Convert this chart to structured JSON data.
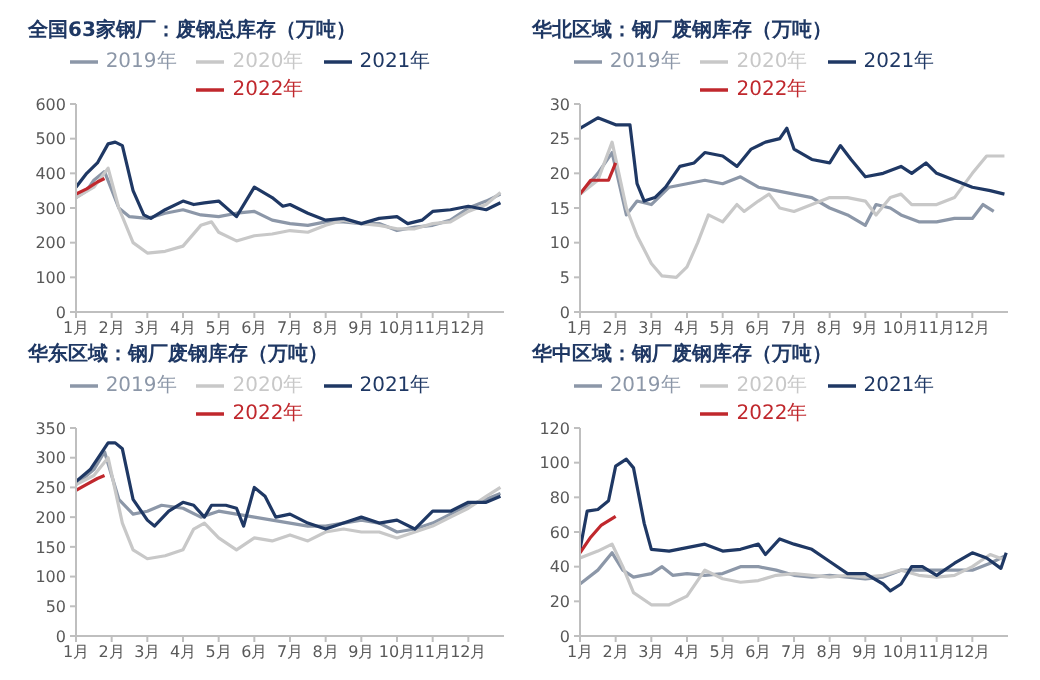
{
  "chart_data": [
    {
      "type": "line",
      "title": "全国63家钢厂：废钢总库存（万吨）",
      "xlim": [
        1,
        13
      ],
      "xticks": [
        {
          "value": 1,
          "label": "1月"
        },
        {
          "value": 2,
          "label": "2月"
        },
        {
          "value": 3,
          "label": "3月"
        },
        {
          "value": 4,
          "label": "4月"
        },
        {
          "value": 5,
          "label": "5月"
        },
        {
          "value": 6,
          "label": "6月"
        },
        {
          "value": 7,
          "label": "7月"
        },
        {
          "value": 8,
          "label": "8月"
        },
        {
          "value": 9,
          "label": "9月"
        },
        {
          "value": 10,
          "label": "10月"
        },
        {
          "value": 11,
          "label": "11月"
        },
        {
          "value": 12,
          "label": "12月"
        }
      ],
      "ylim": [
        0,
        600
      ],
      "yticks": [
        0,
        100,
        200,
        300,
        400,
        500,
        600
      ],
      "grid": false,
      "legend": "top",
      "marker": "none",
      "line_style": "solid",
      "series": [
        {
          "name": "2019年",
          "color": "#8c97a8",
          "x": [
            1,
            1.3,
            1.5,
            1.8,
            2.2,
            2.5,
            3,
            3.5,
            4,
            4.5,
            5,
            5.5,
            6,
            6.5,
            7,
            7.5,
            8,
            8.5,
            9,
            9.5,
            10,
            10.5,
            11,
            11.5,
            12,
            12.5,
            12.9
          ],
          "values": [
            330,
            350,
            380,
            405,
            300,
            275,
            270,
            285,
            295,
            280,
            275,
            285,
            290,
            265,
            255,
            250,
            260,
            260,
            255,
            255,
            235,
            245,
            250,
            265,
            300,
            320,
            340
          ]
        },
        {
          "name": "2020年",
          "color": "#c8c8c8",
          "x": [
            1,
            1.5,
            1.9,
            2.2,
            2.6,
            3,
            3.5,
            4,
            4.5,
            4.8,
            5,
            5.5,
            6,
            6.5,
            7,
            7.5,
            8,
            8.5,
            9,
            9.5,
            10,
            10.5,
            11,
            11.5,
            12,
            12.5,
            12.9
          ],
          "values": [
            330,
            360,
            415,
            300,
            200,
            170,
            175,
            190,
            250,
            260,
            230,
            205,
            220,
            225,
            235,
            230,
            250,
            265,
            255,
            250,
            240,
            240,
            255,
            260,
            290,
            310,
            345
          ]
        },
        {
          "name": "2021年",
          "color": "#1f3864",
          "x": [
            1,
            1.3,
            1.6,
            1.9,
            2.1,
            2.3,
            2.6,
            2.9,
            3.1,
            3.5,
            4,
            4.3,
            4.6,
            5,
            5.5,
            6,
            6.5,
            6.8,
            7,
            7.5,
            8,
            8.5,
            9,
            9.5,
            10,
            10.3,
            10.7,
            11,
            11.5,
            12,
            12.5,
            12.9
          ],
          "values": [
            360,
            400,
            430,
            485,
            490,
            480,
            350,
            280,
            270,
            295,
            320,
            310,
            315,
            320,
            275,
            360,
            330,
            305,
            310,
            285,
            265,
            270,
            255,
            270,
            275,
            255,
            265,
            290,
            295,
            305,
            295,
            315
          ]
        },
        {
          "name": "2022年",
          "color": "#c0282d",
          "x": [
            1,
            1.3,
            1.6,
            1.8
          ],
          "values": [
            340,
            355,
            375,
            385
          ]
        }
      ]
    },
    {
      "type": "line",
      "title": "华北区域：钢厂废钢库存（万吨）",
      "xlim": [
        1,
        13
      ],
      "xticks": [
        {
          "value": 1,
          "label": "1月"
        },
        {
          "value": 2,
          "label": "2月"
        },
        {
          "value": 3,
          "label": "3月"
        },
        {
          "value": 4,
          "label": "4月"
        },
        {
          "value": 5,
          "label": "5月"
        },
        {
          "value": 6,
          "label": "6月"
        },
        {
          "value": 7,
          "label": "7月"
        },
        {
          "value": 8,
          "label": "8月"
        },
        {
          "value": 9,
          "label": "9月"
        },
        {
          "value": 10,
          "label": "10月"
        },
        {
          "value": 11,
          "label": "11月"
        },
        {
          "value": 12,
          "label": "12月"
        }
      ],
      "ylim": [
        0,
        30
      ],
      "yticks": [
        0,
        5,
        10,
        15,
        20,
        25,
        30
      ],
      "grid": false,
      "legend": "top",
      "marker": "none",
      "line_style": "solid",
      "series": [
        {
          "name": "2019年",
          "color": "#8c97a8",
          "x": [
            1,
            1.5,
            1.9,
            2.3,
            2.6,
            3,
            3.5,
            4,
            4.5,
            5,
            5.5,
            6,
            6.5,
            7,
            7.5,
            8,
            8.5,
            9,
            9.3,
            9.7,
            10,
            10.5,
            11,
            11.5,
            12,
            12.3,
            12.6
          ],
          "values": [
            17,
            20,
            23,
            14,
            16,
            15.5,
            18,
            18.5,
            19,
            18.5,
            19.5,
            18,
            17.5,
            17,
            16.5,
            15,
            14,
            12.5,
            15.5,
            15,
            14,
            13,
            13,
            13.5,
            13.5,
            15.5,
            14.5
          ]
        },
        {
          "name": "2020年",
          "color": "#c8c8c8",
          "x": [
            1,
            1.5,
            1.9,
            2.3,
            2.6,
            3,
            3.3,
            3.7,
            4,
            4.3,
            4.6,
            5,
            5.4,
            5.6,
            6,
            6.3,
            6.6,
            7,
            7.5,
            8,
            8.5,
            9,
            9.3,
            9.7,
            10,
            10.3,
            10.7,
            11,
            11.5,
            12,
            12.4,
            12.9
          ],
          "values": [
            17,
            19,
            24.5,
            15,
            11,
            7,
            5.2,
            5,
            6.5,
            10,
            14,
            13,
            15.5,
            14.5,
            16,
            17,
            15,
            14.5,
            15.5,
            16.5,
            16.5,
            16,
            14,
            16.5,
            17,
            15.5,
            15.5,
            15.5,
            16.5,
            20,
            22.5,
            22.5
          ]
        },
        {
          "name": "2021年",
          "color": "#1f3864",
          "x": [
            1,
            1.5,
            2,
            2.4,
            2.6,
            2.8,
            3.1,
            3.4,
            3.8,
            4.2,
            4.5,
            5,
            5.4,
            5.8,
            6.2,
            6.6,
            6.8,
            7,
            7.5,
            8,
            8.3,
            8.6,
            9,
            9.5,
            10,
            10.3,
            10.7,
            11,
            11.5,
            12,
            12.5,
            12.9
          ],
          "values": [
            26.5,
            28,
            27,
            27,
            18.5,
            16,
            16.5,
            18,
            21,
            21.5,
            23,
            22.5,
            21,
            23.5,
            24.5,
            25,
            26.5,
            23.5,
            22,
            21.5,
            24,
            22,
            19.5,
            20,
            21,
            20,
            21.5,
            20,
            19,
            18,
            17.5,
            17
          ]
        },
        {
          "name": "2022年",
          "color": "#c0282d",
          "x": [
            1,
            1.3,
            1.6,
            1.8,
            2
          ],
          "values": [
            17,
            19,
            19,
            19,
            21.5
          ]
        }
      ]
    },
    {
      "type": "line",
      "title": "华东区域：钢厂废钢库存（万吨）",
      "xlim": [
        1,
        13
      ],
      "xticks": [
        {
          "value": 1,
          "label": "1月"
        },
        {
          "value": 2,
          "label": "2月"
        },
        {
          "value": 3,
          "label": "3月"
        },
        {
          "value": 4,
          "label": "4月"
        },
        {
          "value": 5,
          "label": "5月"
        },
        {
          "value": 6,
          "label": "6月"
        },
        {
          "value": 7,
          "label": "7月"
        },
        {
          "value": 8,
          "label": "8月"
        },
        {
          "value": 9,
          "label": "9月"
        },
        {
          "value": 10,
          "label": "10月"
        },
        {
          "value": 11,
          "label": "11月"
        },
        {
          "value": 12,
          "label": "12月"
        }
      ],
      "ylim": [
        0,
        350
      ],
      "yticks": [
        0,
        50,
        100,
        150,
        200,
        250,
        300,
        350
      ],
      "grid": false,
      "legend": "top",
      "marker": "none",
      "line_style": "solid",
      "series": [
        {
          "name": "2019年",
          "color": "#8c97a8",
          "x": [
            1,
            1.5,
            1.8,
            2.2,
            2.6,
            3,
            3.4,
            4,
            4.5,
            5,
            5.5,
            6,
            6.5,
            7,
            7.5,
            8,
            8.5,
            9,
            9.5,
            10,
            10.5,
            11,
            11.5,
            12,
            12.5,
            12.9
          ],
          "values": [
            255,
            280,
            310,
            230,
            205,
            210,
            220,
            215,
            200,
            210,
            205,
            200,
            195,
            190,
            185,
            185,
            190,
            195,
            190,
            175,
            180,
            190,
            205,
            220,
            230,
            240
          ]
        },
        {
          "name": "2020年",
          "color": "#c8c8c8",
          "x": [
            1,
            1.5,
            1.9,
            2.3,
            2.6,
            3,
            3.5,
            4,
            4.3,
            4.6,
            5,
            5.5,
            6,
            6.5,
            7,
            7.5,
            8,
            8.5,
            9,
            9.5,
            10,
            10.5,
            11,
            11.5,
            12,
            12.5,
            12.9
          ],
          "values": [
            255,
            270,
            300,
            190,
            145,
            130,
            135,
            145,
            180,
            190,
            165,
            145,
            165,
            160,
            170,
            160,
            175,
            180,
            175,
            175,
            165,
            175,
            185,
            200,
            215,
            235,
            250
          ]
        },
        {
          "name": "2021年",
          "color": "#1f3864",
          "x": [
            1,
            1.4,
            1.9,
            2.1,
            2.3,
            2.6,
            3,
            3.2,
            3.6,
            4,
            4.3,
            4.6,
            4.8,
            5.2,
            5.5,
            5.7,
            6,
            6.3,
            6.6,
            7,
            7.5,
            8,
            8.5,
            9,
            9.5,
            10,
            10.5,
            11,
            11.5,
            12,
            12.5,
            12.9
          ],
          "values": [
            260,
            280,
            325,
            325,
            315,
            230,
            195,
            185,
            210,
            225,
            220,
            200,
            220,
            220,
            215,
            185,
            250,
            235,
            200,
            205,
            190,
            180,
            190,
            200,
            190,
            195,
            180,
            210,
            210,
            225,
            225,
            235
          ]
        },
        {
          "name": "2022年",
          "color": "#c0282d",
          "x": [
            1,
            1.3,
            1.6,
            1.8
          ],
          "values": [
            245,
            255,
            265,
            270
          ]
        }
      ]
    },
    {
      "type": "line",
      "title": "华中区域：钢厂废钢库存（万吨）",
      "xlim": [
        1,
        13
      ],
      "xticks": [
        {
          "value": 1,
          "label": "1月"
        },
        {
          "value": 2,
          "label": "2月"
        },
        {
          "value": 3,
          "label": "3月"
        },
        {
          "value": 4,
          "label": "4月"
        },
        {
          "value": 5,
          "label": "5月"
        },
        {
          "value": 6,
          "label": "6月"
        },
        {
          "value": 7,
          "label": "7月"
        },
        {
          "value": 8,
          "label": "8月"
        },
        {
          "value": 9,
          "label": "9月"
        },
        {
          "value": 10,
          "label": "10月"
        },
        {
          "value": 11,
          "label": "11月"
        },
        {
          "value": 12,
          "label": "12月"
        }
      ],
      "ylim": [
        0,
        120
      ],
      "yticks": [
        0,
        20,
        40,
        60,
        80,
        100,
        120
      ],
      "grid": false,
      "legend": "top",
      "marker": "none",
      "line_style": "solid",
      "series": [
        {
          "name": "2019年",
          "color": "#8c97a8",
          "x": [
            1,
            1.5,
            1.9,
            2.2,
            2.5,
            3,
            3.3,
            3.6,
            4,
            4.5,
            5,
            5.5,
            6,
            6.5,
            7,
            7.5,
            8,
            8.5,
            9,
            9.5,
            10,
            10.5,
            11,
            11.5,
            12,
            12.5,
            12.9
          ],
          "values": [
            30,
            38,
            48,
            38,
            34,
            36,
            40,
            35,
            36,
            35,
            36,
            40,
            40,
            38,
            35,
            34,
            35,
            34,
            33,
            34,
            38,
            38,
            38,
            38,
            38,
            42,
            46
          ]
        },
        {
          "name": "2020年",
          "color": "#c8c8c8",
          "x": [
            1,
            1.5,
            1.9,
            2.2,
            2.5,
            3,
            3.5,
            4,
            4.5,
            5,
            5.5,
            6,
            6.5,
            7,
            7.5,
            8,
            8.5,
            9,
            9.5,
            10,
            10.5,
            11,
            11.5,
            12,
            12.5,
            12.9
          ],
          "values": [
            45,
            49,
            53,
            40,
            25,
            18,
            18,
            23,
            38,
            33,
            31,
            32,
            35,
            36,
            35,
            34,
            35,
            34,
            35,
            38,
            35,
            34,
            35,
            40,
            47,
            44
          ]
        },
        {
          "name": "2021年",
          "color": "#1f3864",
          "x": [
            1,
            1.2,
            1.5,
            1.8,
            2,
            2.3,
            2.5,
            2.8,
            3,
            3.5,
            4,
            4.5,
            5,
            5.5,
            6,
            6.2,
            6.6,
            7,
            7.5,
            8,
            8.5,
            9,
            9.5,
            9.7,
            10,
            10.3,
            10.6,
            11,
            11.5,
            12,
            12.4,
            12.8,
            12.95
          ],
          "values": [
            50,
            72,
            73,
            78,
            98,
            102,
            97,
            65,
            50,
            49,
            51,
            53,
            49,
            50,
            53,
            47,
            56,
            53,
            50,
            43,
            36,
            36,
            30,
            26,
            30,
            40,
            40,
            35,
            42,
            48,
            45,
            39,
            48
          ]
        },
        {
          "name": "2022年",
          "color": "#c0282d",
          "x": [
            1,
            1.3,
            1.6,
            2
          ],
          "values": [
            48,
            57,
            64,
            69
          ]
        }
      ]
    }
  ]
}
